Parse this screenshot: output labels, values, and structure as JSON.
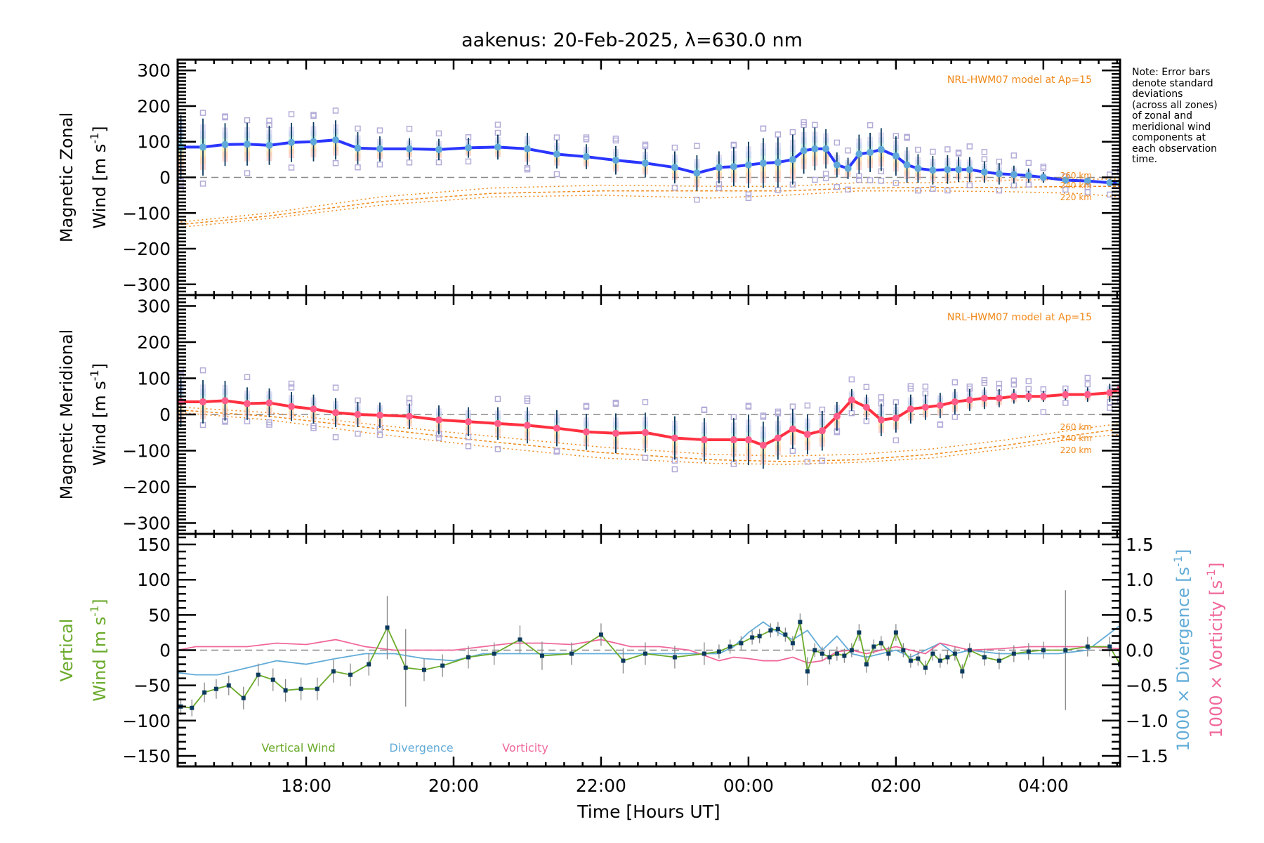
{
  "title": "aakenus: 20-Feb-2025, λ=630.0 nm",
  "note": "Note: Error bars\ndenote standard\ndeviations\n(across all zones)\nof zonal and\nmeridional wind\ncomponents at\neach observation\ntime.",
  "colors": {
    "zonal": "#2a36ff",
    "zonal_marker": "#5fa8d9",
    "meridional": "#ff3040",
    "meridional_marker": "#ff5c8a",
    "model": "#f08a1c",
    "vertical": "#6aaa2a",
    "vertical_marker": "#0b3a5e",
    "divergence": "#63acd8",
    "vorticity": "#f0679a",
    "errorbar": "#0b3a5e",
    "zone_box": "#b3acd8"
  },
  "chart_data": [
    {
      "id": "zonal",
      "type": "line",
      "ylabel_line1": "Magnetic Zonal",
      "ylabel_line2": "Wind [m s",
      "ylabel_sup": "-1",
      "ylabel_close": "]",
      "ylim": [
        -330,
        330
      ],
      "yticks": [
        300,
        200,
        100,
        0,
        -100,
        -200,
        -300
      ],
      "ytick_labels": [
        "300",
        "200",
        "100",
        "0",
        "−100",
        "−200",
        "−300"
      ],
      "model_label": "NRL-HWM07 model at Ap=15",
      "model_altitudes": [
        "260 km",
        "240 km",
        "220 km"
      ],
      "series": [
        {
          "name": "Magnetic Zonal Wind",
          "x": [
            16.3,
            16.6,
            16.9,
            17.2,
            17.5,
            17.8,
            18.1,
            18.4,
            18.7,
            19.0,
            19.4,
            19.8,
            20.2,
            20.6,
            21.0,
            21.4,
            21.8,
            22.2,
            22.6,
            23.0,
            23.3,
            23.6,
            23.8,
            24.0,
            24.2,
            24.4,
            24.6,
            24.75,
            24.9,
            25.05,
            25.2,
            25.35,
            25.5,
            25.65,
            25.8,
            26.0,
            26.15,
            26.3,
            26.5,
            26.7,
            26.85,
            27.0,
            27.2,
            27.4,
            27.6,
            27.8,
            28.0,
            28.3,
            28.6,
            28.9,
            29.04
          ],
          "y": [
            85,
            85,
            92,
            93,
            90,
            98,
            100,
            105,
            82,
            80,
            80,
            78,
            83,
            85,
            80,
            65,
            58,
            48,
            40,
            28,
            12,
            28,
            30,
            35,
            40,
            42,
            50,
            75,
            80,
            80,
            35,
            25,
            65,
            70,
            78,
            60,
            35,
            25,
            20,
            22,
            22,
            22,
            15,
            10,
            8,
            5,
            0,
            -8,
            -10,
            -15,
            -15
          ],
          "err": [
            90,
            80,
            60,
            60,
            55,
            55,
            55,
            55,
            45,
            35,
            30,
            30,
            28,
            35,
            45,
            40,
            35,
            40,
            40,
            45,
            50,
            45,
            55,
            65,
            70,
            70,
            70,
            65,
            60,
            55,
            35,
            30,
            55,
            55,
            60,
            55,
            50,
            40,
            40,
            40,
            35,
            35,
            30,
            30,
            25,
            20,
            15,
            10,
            10,
            10,
            10
          ]
        },
        {
          "name": "HWM07 260 km",
          "x": [
            16.3,
            17.5,
            19.0,
            20.5,
            22.0,
            23.5,
            24.5,
            25.5,
            26.5,
            27.5,
            28.5,
            29.04
          ],
          "y": [
            -125,
            -100,
            -55,
            -30,
            -22,
            -25,
            -25,
            -15,
            -15,
            -8,
            -5,
            -5
          ]
        },
        {
          "name": "HWM07 240 km",
          "x": [
            16.3,
            17.5,
            19.0,
            20.5,
            22.0,
            23.5,
            24.5,
            25.5,
            26.5,
            27.5,
            28.5,
            29.04
          ],
          "y": [
            -132,
            -108,
            -68,
            -45,
            -38,
            -38,
            -38,
            -30,
            -28,
            -28,
            -25,
            -25
          ]
        },
        {
          "name": "HWM07 220 km",
          "x": [
            16.3,
            17.5,
            19.0,
            20.5,
            22.0,
            23.5,
            24.5,
            25.5,
            26.5,
            27.5,
            28.5,
            29.04
          ],
          "y": [
            -140,
            -115,
            -78,
            -55,
            -50,
            -58,
            -50,
            -38,
            -38,
            -40,
            -45,
            -55
          ]
        }
      ]
    },
    {
      "id": "meridional",
      "type": "line",
      "ylabel_line1": "Magnetic Meridional",
      "ylabel_line2": "Wind [m s",
      "ylabel_sup": "-1",
      "ylabel_close": "]",
      "ylim": [
        -330,
        330
      ],
      "yticks": [
        300,
        200,
        100,
        0,
        -100,
        -200,
        -300
      ],
      "ytick_labels": [
        "300",
        "200",
        "100",
        "0",
        "−100",
        "−200",
        "−300"
      ],
      "model_label": "NRL-HWM07 model at Ap=15",
      "model_altitudes": [
        "260 km",
        "240 km",
        "220 km"
      ],
      "series": [
        {
          "name": "Magnetic Meridional Wind",
          "x": [
            16.3,
            16.6,
            16.9,
            17.2,
            17.5,
            17.8,
            18.1,
            18.4,
            18.7,
            19.0,
            19.4,
            19.8,
            20.2,
            20.6,
            21.0,
            21.4,
            21.8,
            22.2,
            22.6,
            23.0,
            23.4,
            23.8,
            24.0,
            24.2,
            24.4,
            24.6,
            24.8,
            25.0,
            25.2,
            25.4,
            25.6,
            25.8,
            26.0,
            26.2,
            26.4,
            26.6,
            26.8,
            27.0,
            27.2,
            27.4,
            27.6,
            27.8,
            28.0,
            28.3,
            28.6,
            28.9,
            29.04
          ],
          "y": [
            35,
            35,
            38,
            30,
            32,
            22,
            15,
            5,
            0,
            -2,
            -5,
            -15,
            -20,
            -25,
            -30,
            -38,
            -48,
            -52,
            -50,
            -65,
            -70,
            -70,
            -70,
            -85,
            -65,
            -40,
            -55,
            -45,
            -5,
            40,
            20,
            -15,
            -10,
            15,
            20,
            25,
            35,
            40,
            45,
            45,
            50,
            50,
            50,
            55,
            55,
            60,
            70
          ],
          "err": [
            70,
            60,
            55,
            45,
            40,
            40,
            40,
            40,
            35,
            35,
            35,
            40,
            40,
            45,
            50,
            50,
            50,
            55,
            55,
            60,
            60,
            60,
            70,
            65,
            60,
            55,
            55,
            55,
            40,
            30,
            35,
            45,
            40,
            40,
            35,
            35,
            35,
            30,
            30,
            25,
            20,
            15,
            15,
            15,
            20,
            25,
            25
          ]
        },
        {
          "name": "HWM07 260 km",
          "x": [
            16.3,
            17.5,
            19.0,
            20.5,
            22.0,
            23.5,
            24.5,
            25.5,
            26.5,
            27.5,
            28.5,
            29.04
          ],
          "y": [
            20,
            5,
            -30,
            -60,
            -90,
            -110,
            -115,
            -110,
            -95,
            -70,
            -40,
            -25
          ]
        },
        {
          "name": "HWM07 240 km",
          "x": [
            16.3,
            17.5,
            19.0,
            20.5,
            22.0,
            23.5,
            24.5,
            25.5,
            26.5,
            27.5,
            28.5,
            29.04
          ],
          "y": [
            12,
            -5,
            -40,
            -75,
            -105,
            -125,
            -130,
            -125,
            -110,
            -85,
            -55,
            -40
          ]
        },
        {
          "name": "HWM07 220 km",
          "x": [
            16.3,
            17.5,
            19.0,
            20.5,
            22.0,
            23.5,
            24.5,
            25.5,
            26.5,
            27.5,
            28.5,
            29.04
          ],
          "y": [
            5,
            -15,
            -55,
            -90,
            -120,
            -135,
            -138,
            -132,
            -120,
            -95,
            -65,
            -55
          ]
        }
      ]
    },
    {
      "id": "vertical",
      "type": "line",
      "ylabel_line1": "Vertical",
      "ylabel_line2": "Wind [m s",
      "ylabel_sup": "-1",
      "ylabel_close": "]",
      "ylim": [
        -165,
        165
      ],
      "yticks": [
        150,
        100,
        50,
        0,
        -50,
        -100,
        -150
      ],
      "ytick_labels": [
        "150",
        "100",
        "50",
        "0",
        "−50",
        "−100",
        "−150"
      ],
      "y2lim": [
        -1.65,
        1.65
      ],
      "y2ticks": [
        1.5,
        1.0,
        0.5,
        0.0,
        -0.5,
        -1.0,
        -1.5
      ],
      "y2tick_labels": [
        "1.5",
        "1.0",
        "0.5",
        "0.0",
        "−0.5",
        "−1.0",
        "−1.5"
      ],
      "y2label_div": "1000 × Divergence [s",
      "y2label_vort": "1000 × Vorticity [s",
      "y2label_sup": "-1",
      "y2label_close": "]",
      "xlabel": "Time [Hours UT]",
      "xticks": [
        18,
        20,
        22,
        24,
        26,
        28
      ],
      "xtick_labels": [
        "18:00",
        "20:00",
        "22:00",
        "00:00",
        "02:00",
        "04:00"
      ],
      "xlim": [
        16.257,
        29.04
      ],
      "legend": [
        "Vertical Wind",
        "Divergence",
        "Vorticity"
      ],
      "series": [
        {
          "name": "Vertical Wind",
          "x": [
            16.3,
            16.45,
            16.62,
            16.78,
            16.95,
            17.15,
            17.35,
            17.55,
            17.72,
            17.93,
            18.15,
            18.37,
            18.6,
            18.85,
            19.1,
            19.35,
            19.6,
            19.85,
            20.2,
            20.55,
            20.9,
            21.2,
            21.6,
            22.0,
            22.3,
            22.6,
            23.0,
            23.4,
            23.6,
            23.75,
            23.9,
            24.05,
            24.15,
            24.3,
            24.4,
            24.5,
            24.6,
            24.7,
            24.8,
            24.9,
            25.0,
            25.1,
            25.2,
            25.3,
            25.4,
            25.5,
            25.6,
            25.7,
            25.8,
            25.9,
            26.0,
            26.1,
            26.2,
            26.3,
            26.4,
            26.5,
            26.6,
            26.7,
            26.8,
            26.9,
            27.0,
            27.2,
            27.4,
            27.6,
            27.8,
            28.0,
            28.3,
            28.6,
            28.9,
            29.04
          ],
          "y": [
            -80,
            -82,
            -60,
            -55,
            -50,
            -68,
            -35,
            -42,
            -57,
            -55,
            -55,
            -30,
            -35,
            -20,
            32,
            -25,
            -28,
            -22,
            -10,
            -5,
            15,
            -8,
            -5,
            22,
            -15,
            -5,
            -10,
            -5,
            -2,
            5,
            10,
            18,
            20,
            28,
            30,
            22,
            10,
            40,
            -30,
            0,
            -5,
            -10,
            -5,
            -8,
            0,
            25,
            -20,
            5,
            10,
            -5,
            25,
            0,
            -15,
            -12,
            -25,
            -5,
            -15,
            -10,
            -5,
            -30,
            0,
            -10,
            -15,
            -5,
            -2,
            0,
            0,
            5,
            5,
            -20
          ],
          "err": [
            12,
            12,
            14,
            14,
            14,
            16,
            16,
            16,
            16,
            16,
            16,
            16,
            16,
            16,
            45,
            55,
            16,
            16,
            16,
            16,
            20,
            20,
            16,
            16,
            18,
            16,
            16,
            16,
            10,
            10,
            10,
            10,
            10,
            10,
            10,
            10,
            10,
            12,
            20,
            10,
            10,
            10,
            10,
            10,
            10,
            12,
            12,
            10,
            10,
            10,
            12,
            10,
            10,
            10,
            10,
            10,
            10,
            10,
            10,
            10,
            10,
            12,
            12,
            12,
            12,
            12,
            85,
            14,
            14,
            14
          ]
        },
        {
          "name": "Divergence",
          "x": [
            16.257,
            16.5,
            16.8,
            17.2,
            17.6,
            18.0,
            18.4,
            18.8,
            19.2,
            19.6,
            20.0,
            20.4,
            20.8,
            21.2,
            21.6,
            22.0,
            22.4,
            22.8,
            23.2,
            23.6,
            23.8,
            24.0,
            24.2,
            24.4,
            24.6,
            24.8,
            25.0,
            25.2,
            25.4,
            25.6,
            25.8,
            26.0,
            26.2,
            26.4,
            26.6,
            26.8,
            27.0,
            27.4,
            27.8,
            28.2,
            28.6,
            29.04
          ],
          "y": [
            -0.32,
            -0.35,
            -0.35,
            -0.25,
            -0.15,
            -0.2,
            -0.12,
            -0.05,
            -0.05,
            -0.12,
            -0.15,
            -0.05,
            -0.05,
            -0.05,
            -0.05,
            -0.05,
            -0.05,
            -0.05,
            -0.05,
            -0.05,
            0.05,
            0.25,
            0.4,
            0.25,
            0.15,
            0.28,
            0.0,
            0.2,
            -0.05,
            -0.1,
            -0.05,
            0.0,
            -0.1,
            0.0,
            0.1,
            -0.05,
            0.0,
            -0.05,
            -0.05,
            -0.05,
            0.0,
            0.35
          ]
        },
        {
          "name": "Vorticity",
          "x": [
            16.257,
            16.5,
            16.8,
            17.2,
            17.6,
            18.0,
            18.4,
            18.8,
            19.2,
            19.6,
            20.0,
            20.4,
            20.8,
            21.2,
            21.6,
            22.0,
            22.4,
            22.8,
            23.2,
            23.6,
            23.8,
            24.0,
            24.2,
            24.4,
            24.6,
            24.8,
            25.0,
            25.2,
            25.4,
            25.6,
            25.8,
            26.0,
            26.2,
            26.4,
            26.6,
            26.8,
            27.0,
            27.4,
            27.8,
            28.2,
            28.6,
            29.04
          ],
          "y": [
            0.0,
            0.05,
            0.05,
            0.05,
            0.1,
            0.08,
            0.15,
            0.05,
            0.0,
            0.0,
            0.0,
            0.05,
            0.1,
            0.1,
            0.08,
            0.15,
            0.05,
            0.05,
            0.0,
            -0.15,
            -0.1,
            -0.12,
            -0.15,
            -0.15,
            -0.1,
            -0.18,
            -0.15,
            -0.02,
            0.0,
            -0.05,
            0.0,
            0.05,
            0.0,
            -0.05,
            0.1,
            0.05,
            0.0,
            0.02,
            0.05,
            0.05,
            0.05,
            0.02
          ]
        }
      ]
    }
  ]
}
